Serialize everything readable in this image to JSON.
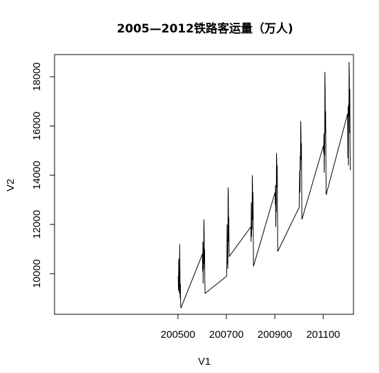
{
  "chart_data": {
    "type": "line",
    "title": "2005—2012铁路客运量（万人)",
    "xlabel": "V1",
    "ylabel": "V2",
    "xlim": [
      199990,
      201225
    ],
    "ylim": [
      8350,
      18900
    ],
    "x_ticks": [
      200500,
      200700,
      200900,
      201100
    ],
    "x_tick_labels": [
      "200500",
      "200700",
      "200900",
      "201100"
    ],
    "y_ticks": [
      10000,
      12000,
      14000,
      16000,
      18000
    ],
    "y_tick_labels": [
      "10000",
      "12000",
      "14000",
      "16000",
      "18000"
    ],
    "grid": false,
    "series": [
      {
        "color": "#000000",
        "x": [
          200501,
          200502,
          200503,
          200504,
          200505,
          200506,
          200507,
          200508,
          200509,
          200510,
          200511,
          200512,
          200601,
          200602,
          200603,
          200604,
          200605,
          200606,
          200607,
          200608,
          200609,
          200610,
          200611,
          200612,
          200701,
          200702,
          200703,
          200704,
          200705,
          200706,
          200707,
          200708,
          200709,
          200710,
          200711,
          200712,
          200801,
          200802,
          200803,
          200804,
          200805,
          200806,
          200807,
          200808,
          200809,
          200810,
          200811,
          200812,
          200901,
          200902,
          200903,
          200904,
          200905,
          200906,
          200907,
          200908,
          200909,
          200910,
          200911,
          200912,
          201001,
          201002,
          201003,
          201004,
          201005,
          201006,
          201007,
          201008,
          201009,
          201010,
          201011,
          201012,
          201101,
          201102,
          201103,
          201104,
          201105,
          201106,
          201107,
          201108,
          201109,
          201110,
          201111,
          201112,
          201201,
          201202,
          201203,
          201204,
          201205,
          201206,
          201207,
          201208,
          201209,
          201210,
          201211,
          201212
        ],
        "y": [
          9900,
          9300,
          10600,
          9400,
          9550,
          9200,
          11200,
          10300,
          9000,
          9600,
          8800,
          8600,
          10800,
          10100,
          11300,
          9600,
          10600,
          10200,
          12200,
          11800,
          10400,
          11000,
          9700,
          9200,
          9900,
          10500,
          12000,
          10400,
          10900,
          10200,
          13500,
          13200,
          11300,
          12300,
          11200,
          10700,
          11900,
          11300,
          12900,
          11500,
          12400,
          11800,
          14000,
          13600,
          12200,
          13300,
          11900,
          10300,
          13300,
          12800,
          13600,
          11900,
          12900,
          12500,
          14900,
          14600,
          13500,
          14400,
          12900,
          10900,
          12700,
          13700,
          14200,
          13300,
          14800,
          14200,
          16200,
          15800,
          14600,
          15300,
          13700,
          12200,
          15200,
          14900,
          15700,
          14100,
          15400,
          14800,
          18200,
          17500,
          15700,
          16600,
          15200,
          13200,
          16500,
          14700,
          16800,
          14400,
          16900,
          16400,
          18600,
          18000,
          15700,
          17500,
          15200,
          14200
        ]
      }
    ]
  }
}
